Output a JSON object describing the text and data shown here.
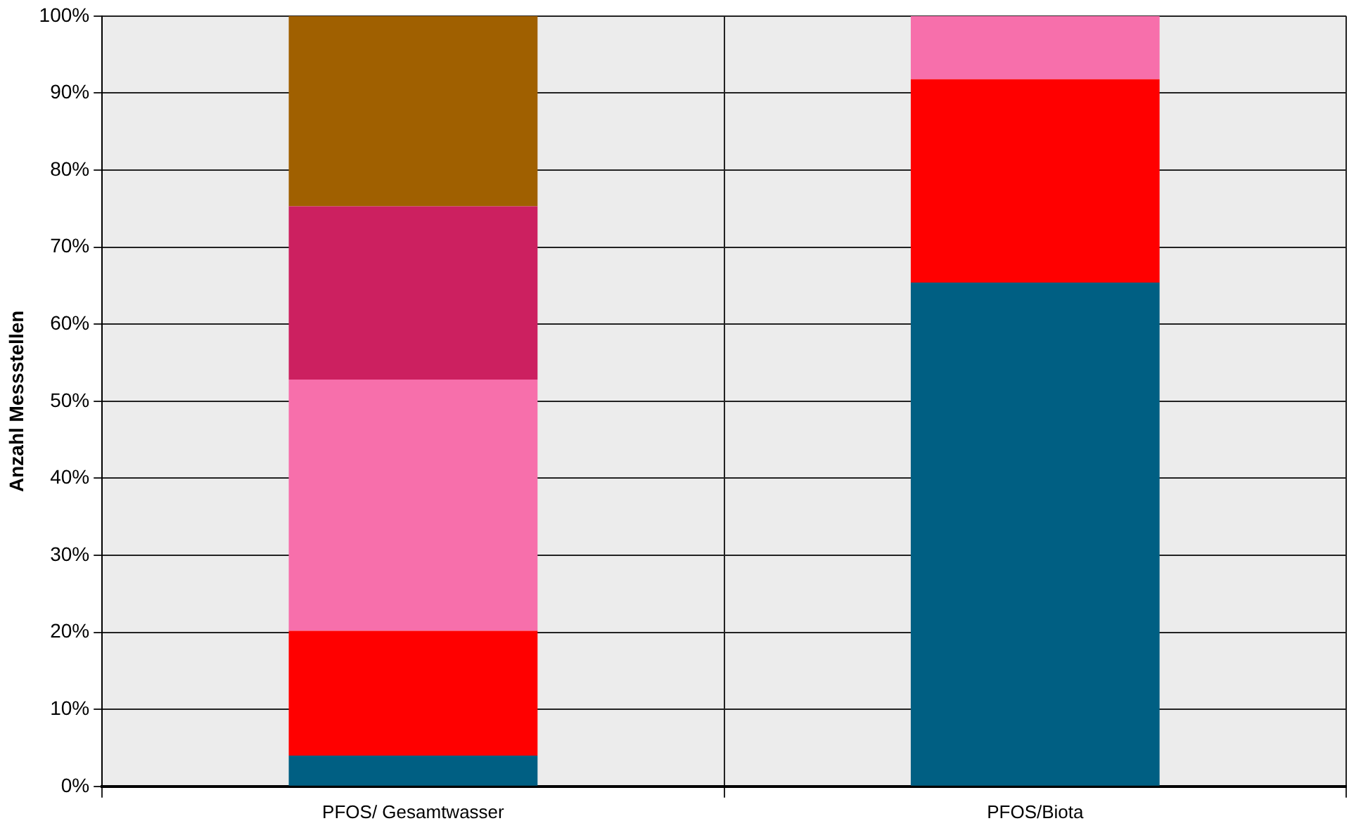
{
  "chart_data": {
    "type": "bar",
    "stacked": true,
    "ylabel": "Anzahl Messstellen",
    "categories": [
      "PFOS/ Gesamtwasser",
      "PFOS/Biota"
    ],
    "series": [
      {
        "color": "#005f83",
        "values": [
          4,
          65.4
        ]
      },
      {
        "color": "#ff0000",
        "values": [
          16.2,
          26.4
        ]
      },
      {
        "color": "#f76fab",
        "values": [
          32.6,
          8.2
        ]
      },
      {
        "color": "#cc2060",
        "values": [
          22.5,
          0
        ]
      },
      {
        "color": "#a06000",
        "values": [
          24.7,
          0
        ]
      }
    ],
    "ylim": [
      0,
      100
    ],
    "yticks": [
      {
        "value": 0,
        "label": "0%"
      },
      {
        "value": 10,
        "label": "10%"
      },
      {
        "value": 20,
        "label": "20%"
      },
      {
        "value": 30,
        "label": "30%"
      },
      {
        "value": 40,
        "label": "40%"
      },
      {
        "value": 50,
        "label": "50%"
      },
      {
        "value": 60,
        "label": "60%"
      },
      {
        "value": 70,
        "label": "70%"
      },
      {
        "value": 80,
        "label": "80%"
      },
      {
        "value": 90,
        "label": "90%"
      },
      {
        "value": 100,
        "label": "100%"
      }
    ],
    "grid": true,
    "legend": false
  }
}
